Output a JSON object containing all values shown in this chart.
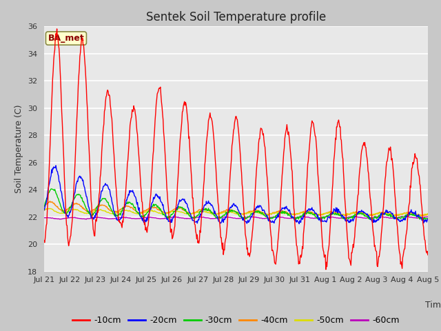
{
  "title": "Sentek Soil Temperature profile",
  "xlabel": "Time",
  "ylabel": "Soil Temperature (C)",
  "ylim": [
    18,
    36
  ],
  "yticks": [
    18,
    20,
    22,
    24,
    26,
    28,
    30,
    32,
    34,
    36
  ],
  "annotation": "BA_met",
  "legend_entries": [
    "-10cm",
    "-20cm",
    "-30cm",
    "-40cm",
    "-50cm",
    "-60cm"
  ],
  "legend_colors": [
    "#ff0000",
    "#0000ff",
    "#00cc00",
    "#ff8800",
    "#dddd00",
    "#bb00bb"
  ],
  "x_tick_labels": [
    "Jul 21",
    "Jul 22",
    "Jul 23",
    "Jul 24",
    "Jul 25",
    "Jul 26",
    "Jul 27",
    "Jul 28",
    "Jul 29",
    "Jul 30",
    "Jul 31",
    "Aug 1",
    "Aug 2",
    "Aug 3",
    "Aug 4",
    "Aug 5"
  ],
  "num_days": 15,
  "pts_per_day": 48,
  "fig_width": 6.4,
  "fig_height": 4.8,
  "dpi": 100
}
